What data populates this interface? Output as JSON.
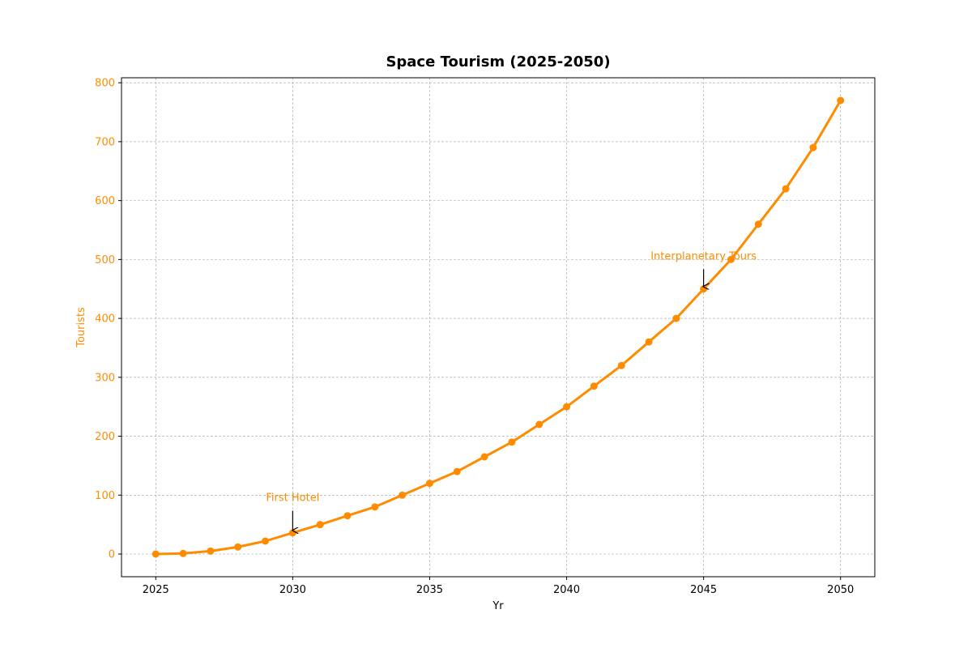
{
  "chart_data": {
    "type": "line",
    "title": "Space Tourism (2025-2050)",
    "xlabel": "Yr",
    "ylabel": "Tourists",
    "xlim": [
      2023.75,
      2051.25
    ],
    "ylim": [
      -38.5,
      808.5
    ],
    "x_ticks": [
      2025,
      2030,
      2035,
      2040,
      2045,
      2050
    ],
    "y_ticks": [
      0,
      100,
      200,
      300,
      400,
      500,
      600,
      700,
      800
    ],
    "grid": true,
    "series": [
      {
        "x": [
          2025,
          2026,
          2027,
          2028,
          2029,
          2030,
          2031,
          2032,
          2033,
          2034,
          2035,
          2036,
          2037,
          2038,
          2039,
          2040,
          2041,
          2042,
          2043,
          2044,
          2045,
          2046,
          2047,
          2048,
          2049,
          2050
        ],
        "values": [
          0,
          1,
          5,
          12,
          22,
          36,
          50,
          65,
          80,
          100,
          120,
          140,
          165,
          190,
          220,
          250,
          285,
          320,
          360,
          400,
          450,
          500,
          560,
          620,
          690,
          770
        ],
        "color": "#ff8c00"
      }
    ],
    "annotations": [
      {
        "text": "First Hotel",
        "x": 2030,
        "y": 36,
        "text_x": 2030,
        "text_y": 90
      },
      {
        "text": "Interplanetary Tours",
        "x": 2045,
        "y": 450,
        "text_x": 2045,
        "text_y": 500
      }
    ],
    "colors": {
      "line": "#ff8c00",
      "ytick": "#ff8c00",
      "ylabel": "#ff8c00",
      "annotation_text": "#ff8c00",
      "grid": "#a0a0a0"
    }
  }
}
